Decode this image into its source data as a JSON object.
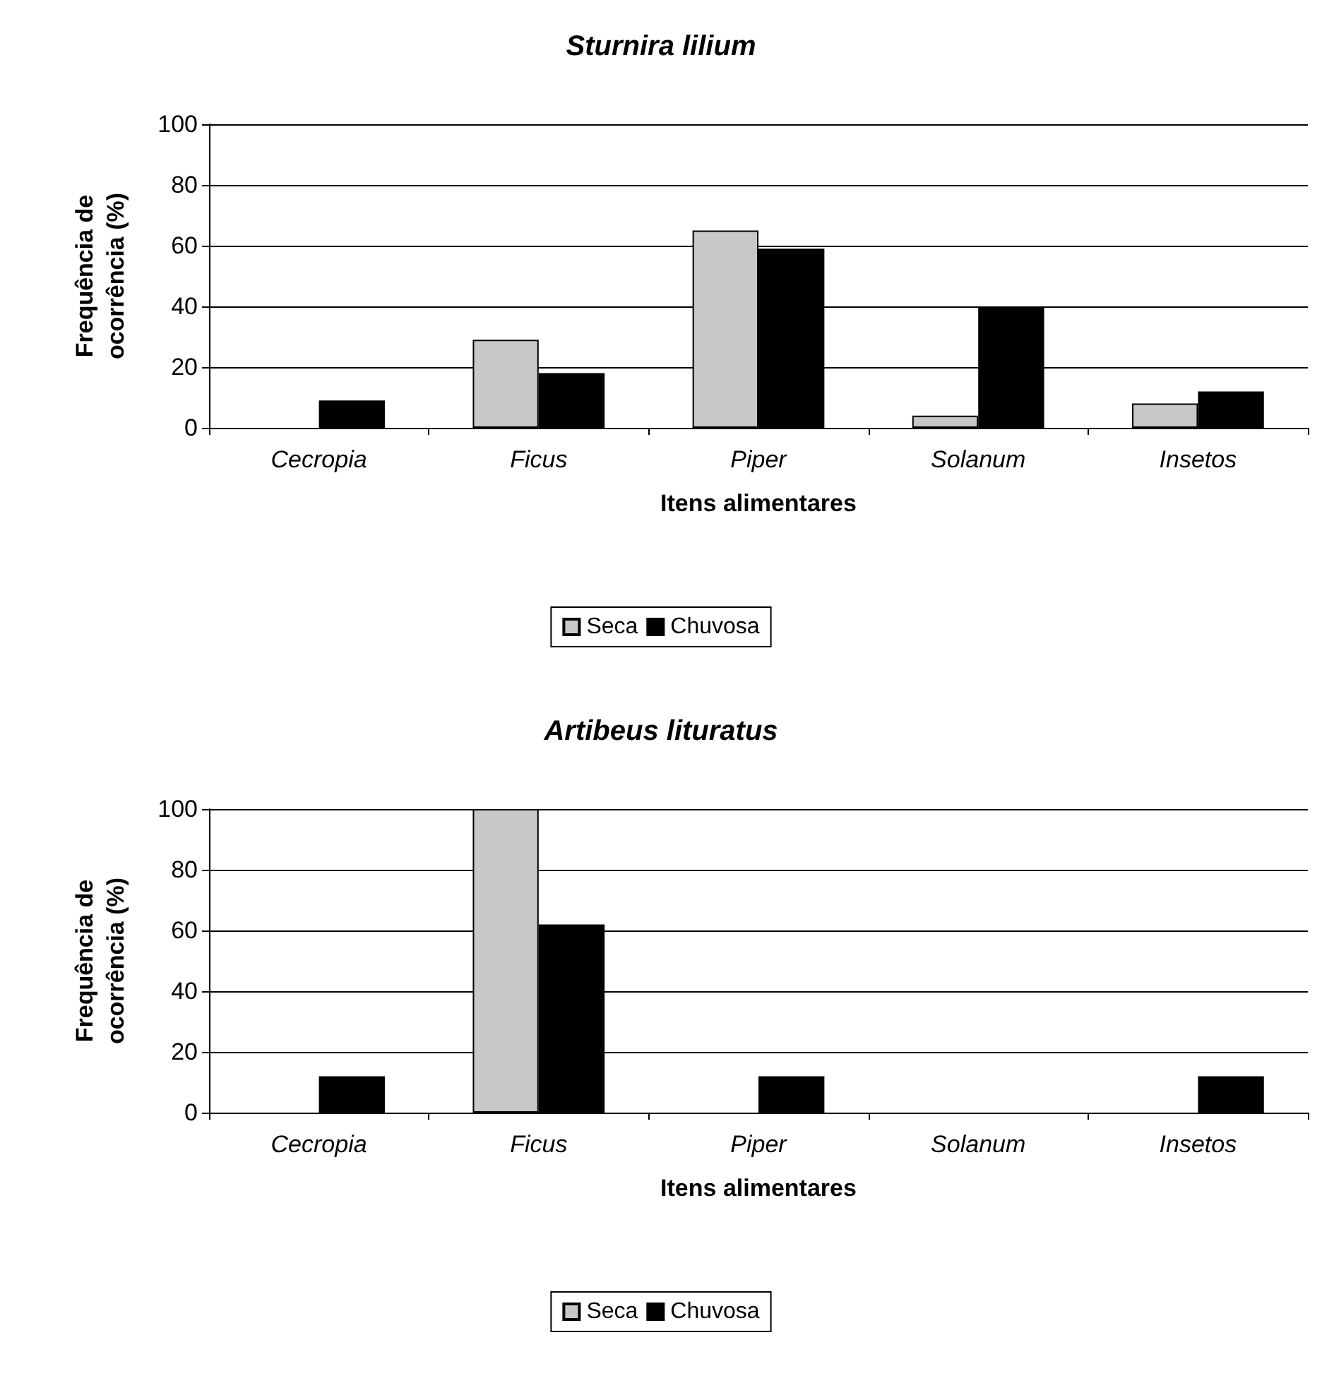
{
  "chart_data": [
    {
      "type": "bar",
      "title": "Sturnira lilium",
      "xlabel": "Itens alimentares",
      "ylabel": "Frequência de\nocorrência (%)",
      "categories": [
        "Cecropia",
        "Ficus",
        "Piper",
        "Solanum",
        "Insetos"
      ],
      "series": [
        {
          "name": "Seca",
          "color": "#c8c8c8",
          "values": [
            0,
            29,
            65,
            4,
            8
          ]
        },
        {
          "name": "Chuvosa",
          "color": "#000000",
          "values": [
            9,
            18,
            59,
            40,
            12
          ]
        }
      ],
      "ylim": [
        0,
        100
      ],
      "yticks": [
        0,
        20,
        40,
        60,
        80,
        100
      ],
      "grid": "y",
      "legend": "bottom"
    },
    {
      "type": "bar",
      "title": "Artibeus lituratus",
      "xlabel": "Itens alimentares",
      "ylabel": "Frequência de\nocorrência (%)",
      "categories": [
        "Cecropia",
        "Ficus",
        "Piper",
        "Solanum",
        "Insetos"
      ],
      "series": [
        {
          "name": "Seca",
          "color": "#c8c8c8",
          "values": [
            0,
            100,
            0,
            0,
            0
          ]
        },
        {
          "name": "Chuvosa",
          "color": "#000000",
          "values": [
            12,
            62,
            12,
            0,
            12
          ]
        }
      ],
      "ylim": [
        0,
        100
      ],
      "yticks": [
        0,
        20,
        40,
        60,
        80,
        100
      ],
      "grid": "y",
      "legend": "bottom"
    }
  ]
}
